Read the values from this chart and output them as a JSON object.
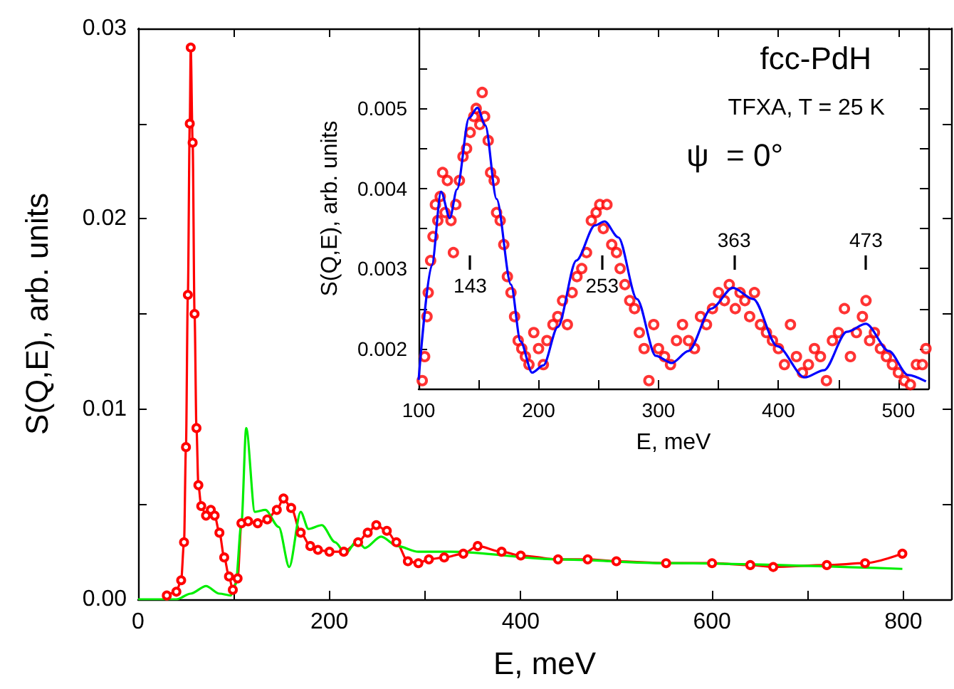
{
  "chart_data": [
    {
      "type": "line",
      "xlabel": "E, meV",
      "ylabel": "S(Q,E), arb. units",
      "xlim": [
        0,
        850
      ],
      "ylim": [
        0,
        0.03
      ],
      "xticks": [
        0,
        {
          "value": 100,
          "label": null
        },
        200,
        {
          "value": 300,
          "label": null
        },
        400,
        {
          "value": 500,
          "label": null
        },
        600,
        {
          "value": 700,
          "label": null
        },
        800
      ],
      "yticks": [
        {
          "value": 0,
          "label": "0.00"
        },
        {
          "value": 0.005,
          "label": null
        },
        0.01,
        {
          "value": 0.015,
          "label": null
        },
        0.02,
        {
          "value": 0.025,
          "label": null
        },
        0.03
      ],
      "series": [
        {
          "color": "#ff0000",
          "marker": "circle",
          "x": [
            30,
            40,
            45,
            48,
            50,
            52,
            54,
            55,
            57,
            59,
            61,
            63,
            66,
            71,
            76,
            80,
            85,
            90,
            95,
            99,
            104,
            108,
            115,
            125,
            135,
            145,
            152,
            160,
            170,
            180,
            188,
            200,
            215,
            230,
            240,
            249,
            260,
            270,
            282,
            293,
            304,
            320,
            340,
            355,
            380,
            400,
            439,
            470,
            500,
            552,
            600,
            640,
            664,
            720,
            760,
            799
          ],
          "values": [
            0.0002,
            0.0004,
            0.001,
            0.003,
            0.008,
            0.016,
            0.025,
            0.029,
            0.024,
            0.015,
            0.009,
            0.006,
            0.0049,
            0.0044,
            0.0047,
            0.0044,
            0.0035,
            0.0022,
            0.0012,
            0.0005,
            0.0011,
            0.004,
            0.0041,
            0.004,
            0.0042,
            0.0047,
            0.0053,
            0.0048,
            0.0035,
            0.0028,
            0.0026,
            0.0025,
            0.0025,
            0.003,
            0.0035,
            0.0039,
            0.0036,
            0.003,
            0.002,
            0.0019,
            0.0021,
            0.0022,
            0.0024,
            0.0028,
            0.0025,
            0.0023,
            0.0021,
            0.0021,
            0.002,
            0.0019,
            0.0019,
            0.0018,
            0.0017,
            0.0018,
            0.0019,
            0.0024
          ]
        },
        {
          "color": "#00ee00",
          "marker": "none",
          "x": [
            0,
            40,
            55,
            71,
            85,
            97,
            102,
            108,
            113,
            122,
            133,
            147,
            158,
            170,
            178,
            192,
            206,
            217,
            229,
            237,
            254,
            271,
            293,
            327,
            439,
            552,
            799
          ],
          "values": [
            0,
            0,
            0.0003,
            0.0007,
            0.0003,
            0.0002,
            0.0008,
            0.004,
            0.009,
            0.0046,
            0.0047,
            0.0038,
            0.0017,
            0.0046,
            0.0037,
            0.0039,
            0.003,
            0.0024,
            0.0031,
            0.0027,
            0.0033,
            0.0028,
            0.0025,
            0.0025,
            0.0021,
            0.0019,
            0.0016
          ]
        }
      ]
    },
    {
      "type": "scatter",
      "xlabel": "E, meV",
      "ylabel": "S(Q,E), arb. units",
      "xlim": [
        100,
        525
      ],
      "ylim": [
        0.0015,
        0.006
      ],
      "xticks": [
        100,
        {
          "value": 150,
          "label": null
        },
        200,
        {
          "value": 250,
          "label": null
        },
        300,
        {
          "value": 350,
          "label": null
        },
        400,
        {
          "value": 450,
          "label": null
        },
        500
      ],
      "yticks": [
        {
          "value": 0.0015,
          "label": null
        },
        0.002,
        {
          "value": 0.0025,
          "label": null
        },
        0.003,
        {
          "value": 0.0035,
          "label": null
        },
        0.004,
        {
          "value": 0.0045,
          "label": null
        },
        0.005,
        {
          "value": 0.0055,
          "label": null
        }
      ],
      "annotations": [
        "fcc-PdH",
        "TFXA, T = 25 K",
        "ψ  = 0°"
      ],
      "ref_lines": [
        {
          "axis": "x",
          "value": 143,
          "label": "143"
        },
        {
          "axis": "x",
          "value": 253,
          "label": "253"
        },
        {
          "axis": "x",
          "value": 363,
          "label": "363"
        },
        {
          "axis": "x",
          "value": 473,
          "label": "473"
        }
      ],
      "series": [
        {
          "color": "#ff0000",
          "marker": "circle",
          "x": [
            103,
            105,
            107,
            108,
            110,
            112,
            114,
            116,
            118,
            120,
            122,
            124,
            127,
            129,
            131,
            134,
            137,
            140,
            143,
            146,
            148,
            151,
            153,
            155,
            158,
            160,
            163,
            165,
            168,
            171,
            174,
            177,
            180,
            183,
            186,
            189,
            192,
            196,
            200,
            204,
            207,
            212,
            216,
            220,
            224,
            228,
            232,
            236,
            240,
            244,
            248,
            251,
            254,
            257,
            261,
            265,
            268,
            272,
            276,
            280,
            284,
            288,
            292,
            296,
            300,
            305,
            310,
            315,
            320,
            325,
            330,
            335,
            340,
            345,
            350,
            355,
            359,
            364,
            368,
            372,
            376,
            380,
            385,
            390,
            395,
            400,
            405,
            410,
            415,
            420,
            425,
            430,
            435,
            440,
            445,
            450,
            455,
            460,
            465,
            470,
            473,
            476,
            480,
            485,
            490,
            495,
            500,
            505,
            510,
            515,
            520,
            523
          ],
          "values": [
            0.0016,
            0.0019,
            0.0024,
            0.0027,
            0.0031,
            0.0034,
            0.0038,
            0.0036,
            0.0039,
            0.0042,
            0.0037,
            0.0041,
            0.0036,
            0.0032,
            0.0038,
            0.0041,
            0.0044,
            0.0045,
            0.0047,
            0.0049,
            0.005,
            0.0048,
            0.0052,
            0.0049,
            0.0046,
            0.0042,
            0.0041,
            0.0037,
            0.0036,
            0.0033,
            0.0029,
            0.0027,
            0.0024,
            0.0021,
            0.002,
            0.0019,
            0.0018,
            0.0022,
            0.002,
            0.0018,
            0.0021,
            0.0023,
            0.0024,
            0.0026,
            0.0023,
            0.0027,
            0.0029,
            0.003,
            0.0032,
            0.0036,
            0.0037,
            0.0038,
            0.0035,
            0.0038,
            0.0033,
            0.0032,
            0.003,
            0.0028,
            0.0026,
            0.0025,
            0.0022,
            0.002,
            0.0016,
            0.0023,
            0.002,
            0.0019,
            0.0018,
            0.0021,
            0.0023,
            0.0021,
            0.002,
            0.0024,
            0.0023,
            0.0025,
            0.0027,
            0.0026,
            0.0028,
            0.0025,
            0.0027,
            0.0026,
            0.0024,
            0.0027,
            0.0023,
            0.0022,
            0.0021,
            0.002,
            0.0018,
            0.0023,
            0.0019,
            0.0017,
            0.0018,
            0.002,
            0.0019,
            0.0016,
            0.0021,
            0.0022,
            0.0025,
            0.0019,
            0.0022,
            0.0024,
            0.0026,
            0.0021,
            0.0022,
            0.002,
            0.0019,
            0.0018,
            0.0017,
            0.0016,
            0.00155,
            0.0018,
            0.0018,
            0.002
          ]
        },
        {
          "type": "line",
          "color": "#0000ff",
          "marker": "none",
          "x": [
            100,
            111,
            118.7,
            126,
            132,
            142,
            149,
            155.6,
            165,
            177,
            185,
            194.6,
            204,
            216,
            231.5,
            247,
            255,
            266.5,
            282,
            297.7,
            311,
            325,
            344,
            362,
            379,
            399,
            422,
            438,
            457,
            473,
            492,
            508,
            523
          ],
          "values": [
            0.00161,
            0.00304,
            0.00396,
            0.00363,
            0.00399,
            0.00488,
            0.00501,
            0.00479,
            0.00387,
            0.0028,
            0.00209,
            0.0017,
            0.00179,
            0.00227,
            0.0031,
            0.00354,
            0.00359,
            0.00339,
            0.00262,
            0.00191,
            0.00182,
            0.00197,
            0.0025,
            0.00276,
            0.00262,
            0.00203,
            0.00164,
            0.00173,
            0.00221,
            0.00231,
            0.00197,
            0.00167,
            0.00159
          ]
        }
      ]
    }
  ]
}
